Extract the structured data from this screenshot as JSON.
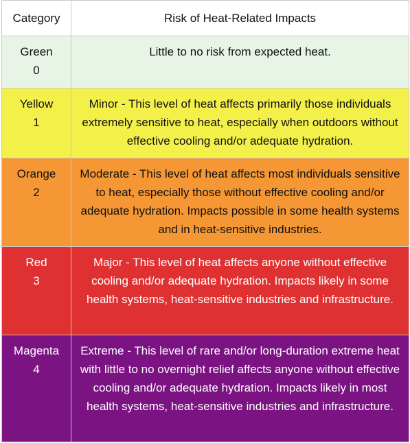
{
  "headers": {
    "category": "Category",
    "risk": "Risk of Heat-Related Impacts"
  },
  "rows": [
    {
      "color_name": "Green",
      "level": "0",
      "background": "#e8f5e6",
      "text_color": "#111111",
      "description": "Little to no risk from expected heat."
    },
    {
      "color_name": "Yellow",
      "level": "1",
      "background": "#f3f04a",
      "text_color": "#111111",
      "description": "Minor - This level of heat affects primarily those individuals extremely sensitive to heat, especially when outdoors without effective cooling and/or adequate hydration."
    },
    {
      "color_name": "Orange",
      "level": "2",
      "background": "#f49734",
      "text_color": "#111111",
      "description": "Moderate - This level of heat affects most individuals sensitive to heat, especially those without effective cooling and/or adequate hydration. Impacts possible in some health systems and in heat-sensitive industries."
    },
    {
      "color_name": "Red",
      "level": "3",
      "background": "#e03132",
      "text_color": "#ffffff",
      "description": "Major - This level of heat affects anyone without effective cooling and/or adequate hydration. Impacts likely in some health systems, heat-sensitive industries and infrastructure."
    },
    {
      "color_name": "Magenta",
      "level": "4",
      "background": "#7b1383",
      "text_color": "#ffffff",
      "description": "Extreme - This level of rare and/or long-duration extreme heat with little to no overnight relief affects anyone without effective cooling and/or adequate hydration. Impacts likely in most health systems, heat-sensitive industries and infrastructure."
    }
  ]
}
